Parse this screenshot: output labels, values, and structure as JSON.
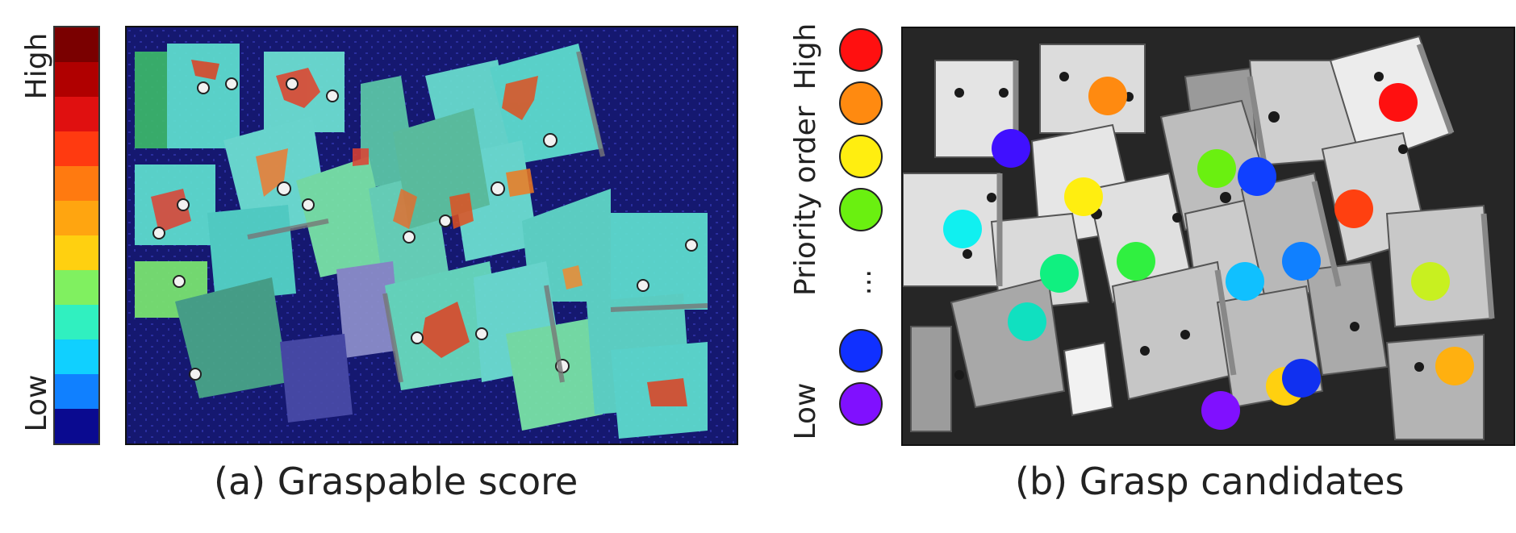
{
  "panel_a": {
    "caption": "(a) Graspable score",
    "colorbar": {
      "high_label": "High",
      "low_label": "Low",
      "colors": [
        "#7a0000",
        "#b00000",
        "#e01010",
        "#ff3a10",
        "#ff7a10",
        "#ffa510",
        "#ffd010",
        "#80f060",
        "#30f0c0",
        "#10d0ff",
        "#1080ff",
        "#0a0a90"
      ]
    }
  },
  "panel_b": {
    "caption": "(b) Grasp candidates",
    "legend": {
      "title": "Priority order",
      "high_label": "High",
      "low_label": "Low",
      "ellipsis": "...",
      "colors": [
        "#ff1010",
        "#ff8a10",
        "#ffee10",
        "#6af010",
        "#1030ff",
        "#8010ff"
      ]
    },
    "candidate_colors": [
      "#ff1010",
      "#ff4010",
      "#ff8a10",
      "#ffd010",
      "#ffee10",
      "#c8f020",
      "#6af010",
      "#30f040",
      "#10f080",
      "#10e0c0",
      "#10f0f0",
      "#10c0ff",
      "#1080ff",
      "#1040ff",
      "#1030f0",
      "#4010ff",
      "#8010ff",
      "#ffb010"
    ]
  }
}
